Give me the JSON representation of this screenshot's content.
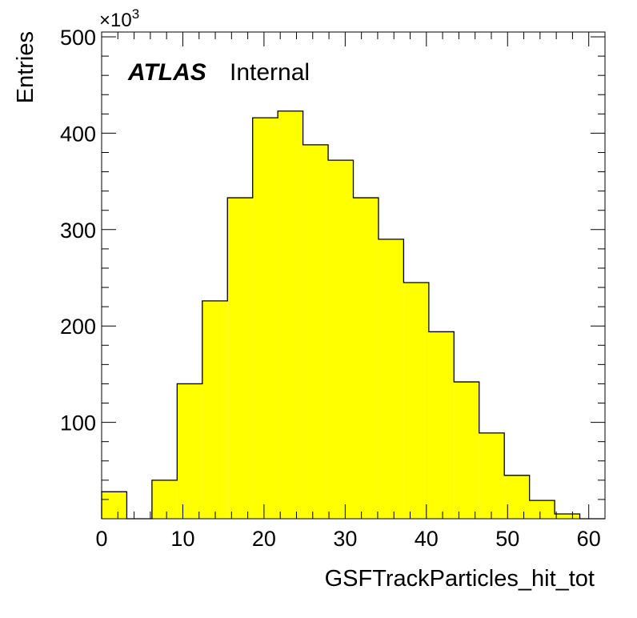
{
  "chart_data": {
    "type": "bar",
    "style": "step-histogram",
    "fill_color": "#ffff00",
    "line_color": "#000000",
    "xlabel": "GSFTrackParticles_hit_tot",
    "ylabel": "Entries",
    "y_multiplier": "×10",
    "y_multiplier_exponent": "3",
    "xlim": [
      0,
      62
    ],
    "ylim": [
      0,
      505
    ],
    "x_ticks": [
      0,
      10,
      20,
      30,
      40,
      50,
      60
    ],
    "y_ticks": [
      100,
      200,
      300,
      400,
      500
    ],
    "bin_width": 3.1,
    "bins": [
      {
        "x_low": 0.0,
        "value": 28
      },
      {
        "x_low": 3.1,
        "value": 0
      },
      {
        "x_low": 6.2,
        "value": 40
      },
      {
        "x_low": 9.3,
        "value": 140
      },
      {
        "x_low": 12.4,
        "value": 226
      },
      {
        "x_low": 15.5,
        "value": 333
      },
      {
        "x_low": 18.6,
        "value": 416
      },
      {
        "x_low": 21.7,
        "value": 423
      },
      {
        "x_low": 24.8,
        "value": 388
      },
      {
        "x_low": 27.9,
        "value": 372
      },
      {
        "x_low": 31.0,
        "value": 333
      },
      {
        "x_low": 34.1,
        "value": 290
      },
      {
        "x_low": 37.2,
        "value": 245
      },
      {
        "x_low": 40.3,
        "value": 194
      },
      {
        "x_low": 43.4,
        "value": 142
      },
      {
        "x_low": 46.5,
        "value": 89
      },
      {
        "x_low": 49.6,
        "value": 45
      },
      {
        "x_low": 52.7,
        "value": 19
      },
      {
        "x_low": 55.8,
        "value": 5
      },
      {
        "x_low": 58.9,
        "value": 0
      }
    ],
    "annotation": {
      "atlas": "ATLAS",
      "label": "Internal"
    },
    "grid": false
  }
}
